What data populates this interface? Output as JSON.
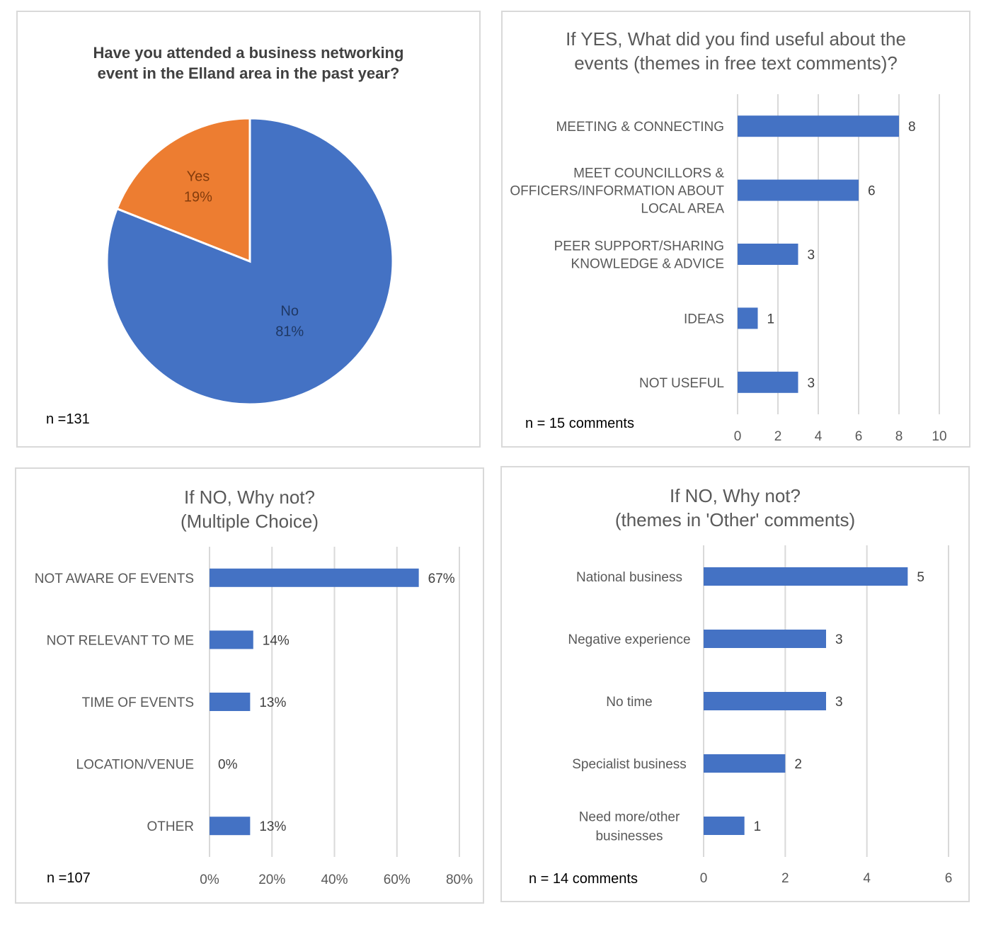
{
  "chart_data": [
    {
      "type": "pie",
      "title": [
        "Have you attended a business networking",
        "event in the Elland area in the past year?"
      ],
      "categories": [
        "No",
        "Yes"
      ],
      "values": [
        81,
        19
      ],
      "labels": [
        "81%",
        "19%"
      ],
      "colors": [
        "#4472C4",
        "#ED7D31"
      ],
      "note": "n =131"
    },
    {
      "type": "bar",
      "orientation": "horizontal",
      "title": [
        "If YES, What did you find useful about the",
        "events (themes in free text comments)?"
      ],
      "categories": [
        [
          "MEETING & CONNECTING"
        ],
        [
          "MEET COUNCILLORS &",
          "OFFICERS/INFORMATION ABOUT",
          "LOCAL AREA"
        ],
        [
          "PEER SUPPORT/SHARING",
          "KNOWLEDGE & ADVICE"
        ],
        [
          "IDEAS"
        ],
        [
          "NOT USEFUL"
        ]
      ],
      "values": [
        8,
        6,
        3,
        1,
        3
      ],
      "data_labels": [
        "8",
        "6",
        "3",
        "1",
        "3"
      ],
      "xlim": [
        0,
        10
      ],
      "ticks": [
        0,
        2,
        4,
        6,
        8,
        10
      ],
      "tick_labels": [
        "0",
        "2",
        "4",
        "6",
        "8",
        "10"
      ],
      "grid": true,
      "color": "#4472C4",
      "note": "n = 15 comments"
    },
    {
      "type": "bar",
      "orientation": "horizontal",
      "title": [
        "If NO, Why not?",
        "(Multiple Choice)"
      ],
      "categories": [
        [
          "NOT AWARE OF EVENTS"
        ],
        [
          "NOT RELEVANT TO ME"
        ],
        [
          "TIME OF EVENTS"
        ],
        [
          "LOCATION/VENUE"
        ],
        [
          "OTHER"
        ]
      ],
      "values": [
        67,
        14,
        13,
        0,
        13
      ],
      "data_labels": [
        "67%",
        "14%",
        "13%",
        "0%",
        "13%"
      ],
      "xlim": [
        0,
        80
      ],
      "ticks": [
        0,
        20,
        40,
        60,
        80
      ],
      "tick_labels": [
        "0%",
        "20%",
        "40%",
        "60%",
        "80%"
      ],
      "grid": true,
      "color": "#4472C4",
      "note": "n =107"
    },
    {
      "type": "bar",
      "orientation": "horizontal",
      "title": [
        "If NO, Why not?",
        "(themes in 'Other' comments)"
      ],
      "categories": [
        [
          "National business"
        ],
        [
          "Negative experience"
        ],
        [
          "No time"
        ],
        [
          "Specialist business"
        ],
        [
          "Need more/other",
          "businesses"
        ]
      ],
      "values": [
        5,
        3,
        3,
        2,
        1
      ],
      "data_labels": [
        "5",
        "3",
        "3",
        "2",
        "1"
      ],
      "xlim": [
        0,
        6
      ],
      "ticks": [
        0,
        2,
        4,
        6
      ],
      "tick_labels": [
        "0",
        "2",
        "4",
        "6"
      ],
      "grid": true,
      "color": "#4472C4",
      "note": "n = 14 comments"
    }
  ]
}
